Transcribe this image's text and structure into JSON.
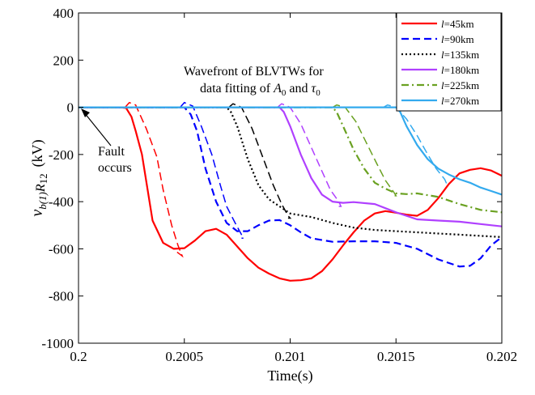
{
  "chart_data": {
    "type": "line",
    "xlabel": "Time(s)",
    "ylabel": {
      "main": "v",
      "sub_b": "b(1)",
      "mid": "R",
      "sub_12": "12",
      "unit": "(kV)"
    },
    "xlim": [
      0.2,
      0.202
    ],
    "ylim": [
      -1000,
      400
    ],
    "xticks": [
      0.2,
      0.2005,
      0.201,
      0.2015,
      0.202
    ],
    "xtick_labels": [
      "0.2",
      "0.2005",
      "0.201",
      "0.2015",
      "0.202"
    ],
    "yticks": [
      -1000,
      -800,
      -600,
      -400,
      -200,
      0,
      200,
      400
    ],
    "ytick_labels": [
      "-1000",
      "-800",
      "-600",
      "-400",
      "-200",
      "0",
      "200",
      "400"
    ],
    "grid": false,
    "legend_position": "top-right",
    "annotations": {
      "fault": [
        "Fault",
        "occurs"
      ],
      "wavefront_line1": "Wavefront of BLVTWs for",
      "wavefront_line2_prefix": "data fitting of ",
      "A_symbol": "A",
      "A_sub": "0",
      "and_text": " and ",
      "tau_symbol": "τ",
      "tau_sub": "0"
    },
    "series": [
      {
        "name": "l=45km",
        "name_var": "l",
        "name_rest": "=45km",
        "color": "#ff0000",
        "dash": "solid",
        "x": [
          0.2,
          0.2002,
          0.200225,
          0.20025,
          0.20027,
          0.2003,
          0.20035,
          0.2004,
          0.20045,
          0.2005,
          0.20055,
          0.2006,
          0.20065,
          0.2007,
          0.20075,
          0.2008,
          0.20085,
          0.2009,
          0.20095,
          0.201,
          0.20105,
          0.2011,
          0.20115,
          0.2012,
          0.20125,
          0.2013,
          0.20135,
          0.2014,
          0.20145,
          0.2015,
          0.20155,
          0.2016,
          0.20165,
          0.2017,
          0.20175,
          0.2018,
          0.20185,
          0.2019,
          0.20195,
          0.202
        ],
        "y": [
          0,
          0,
          -3,
          -40,
          -100,
          -200,
          -480,
          -575,
          -600,
          -597,
          -565,
          -525,
          -515,
          -540,
          -590,
          -640,
          -680,
          -705,
          -725,
          -735,
          -733,
          -725,
          -695,
          -645,
          -585,
          -530,
          -480,
          -450,
          -440,
          -447,
          -455,
          -460,
          -435,
          -385,
          -325,
          -280,
          -265,
          -258,
          -268,
          -290
        ]
      },
      {
        "name": "l=90km",
        "name_var": "l",
        "name_rest": "=90km",
        "color": "#0000ff",
        "dash": "dashed",
        "x": [
          0.2,
          0.2005,
          0.20053,
          0.20056,
          0.2006,
          0.20065,
          0.2007,
          0.20075,
          0.2008,
          0.20085,
          0.2009,
          0.20095,
          0.201,
          0.20105,
          0.2011,
          0.2012,
          0.2013,
          0.2014,
          0.2015,
          0.2016,
          0.2017,
          0.2018,
          0.20185,
          0.2019,
          0.20195,
          0.202
        ],
        "y": [
          0,
          0,
          -30,
          -100,
          -260,
          -400,
          -490,
          -525,
          -525,
          -500,
          -480,
          -478,
          -500,
          -530,
          -555,
          -570,
          -568,
          -568,
          -575,
          -600,
          -645,
          -675,
          -672,
          -640,
          -585,
          -550
        ]
      },
      {
        "name": "l=135km",
        "name_var": "l",
        "name_rest": "=135km",
        "color": "#000000",
        "dash": "dotted",
        "x": [
          0.2,
          0.2007,
          0.20072,
          0.20075,
          0.2008,
          0.20085,
          0.2009,
          0.20095,
          0.201,
          0.20105,
          0.2011,
          0.2012,
          0.2013,
          0.2014,
          0.2015,
          0.2016,
          0.2017,
          0.2018,
          0.2019,
          0.202
        ],
        "y": [
          0,
          0,
          -20,
          -80,
          -220,
          -330,
          -390,
          -420,
          -450,
          -458,
          -465,
          -490,
          -510,
          -520,
          -525,
          -530,
          -535,
          -540,
          -545,
          -550
        ]
      },
      {
        "name": "l=180km",
        "name_var": "l",
        "name_rest": "=180km",
        "color": "#b040ff",
        "dash": "solid",
        "x": [
          0.2,
          0.20095,
          0.20097,
          0.201,
          0.20105,
          0.2011,
          0.20115,
          0.2012,
          0.20125,
          0.2013,
          0.2014,
          0.2015,
          0.2016,
          0.2017,
          0.2018,
          0.2019,
          0.202
        ],
        "y": [
          0,
          0,
          -20,
          -80,
          -200,
          -300,
          -370,
          -400,
          -405,
          -402,
          -410,
          -445,
          -475,
          -480,
          -485,
          -495,
          -505
        ]
      },
      {
        "name": "l=225km",
        "name_var": "l",
        "name_rest": "=225km",
        "color": "#6aa121",
        "dash": "dashdot",
        "x": [
          0.2,
          0.2012,
          0.20122,
          0.20125,
          0.2013,
          0.20135,
          0.2014,
          0.20145,
          0.2015,
          0.20155,
          0.2016,
          0.2017,
          0.2018,
          0.2019,
          0.202
        ],
        "y": [
          0,
          0,
          -20,
          -80,
          -180,
          -260,
          -320,
          -345,
          -365,
          -368,
          -365,
          -380,
          -410,
          -435,
          -445
        ]
      },
      {
        "name": "l=270km",
        "name_var": "l",
        "name_rest": "=270km",
        "color": "#33aaee",
        "dash": "solid",
        "x": [
          0.2,
          0.2015,
          0.20152,
          0.20155,
          0.2016,
          0.20165,
          0.2017,
          0.20175,
          0.2018,
          0.20185,
          0.2019,
          0.20195,
          0.202
        ],
        "y": [
          0,
          0,
          -20,
          -80,
          -160,
          -220,
          -260,
          -285,
          -305,
          -320,
          -340,
          -355,
          -370
        ]
      }
    ],
    "wavefront_fits": [
      {
        "color": "#ff0000",
        "x": [
          0.20022,
          0.20024,
          0.20027,
          0.20032,
          0.20037,
          0.2004,
          0.20044,
          0.20047,
          0.20049,
          0.200475,
          0.20046
        ],
        "y": [
          0,
          20,
          10,
          -90,
          -210,
          -350,
          -500,
          -585,
          -630,
          -620,
          -610
        ]
      },
      {
        "color": "#0000ff",
        "x": [
          0.20048,
          0.2005,
          0.20054,
          0.20058,
          0.20063,
          0.20067,
          0.2007,
          0.20074,
          0.20077,
          0.20078,
          0.20077
        ],
        "y": [
          0,
          20,
          5,
          -80,
          -200,
          -330,
          -420,
          -490,
          -540,
          -555,
          -555
        ]
      },
      {
        "color": "#000000",
        "x": [
          0.20071,
          0.20073,
          0.20077,
          0.20082,
          0.20087,
          0.20092,
          0.20096,
          0.20099,
          0.201,
          0.20099
        ],
        "y": [
          0,
          15,
          0,
          -90,
          -210,
          -330,
          -410,
          -460,
          -470,
          -470
        ]
      },
      {
        "color": "#b040ff",
        "x": [
          0.20094,
          0.20096,
          0.201,
          0.20105,
          0.2011,
          0.20115,
          0.20119,
          0.20123,
          0.20124,
          0.20123
        ],
        "y": [
          0,
          15,
          0,
          -70,
          -170,
          -270,
          -350,
          -400,
          -420,
          -420
        ]
      },
      {
        "color": "#6aa121",
        "x": [
          0.2012,
          0.20122,
          0.20126,
          0.20131,
          0.20136,
          0.20141,
          0.20145,
          0.20149,
          0.2015,
          0.20149
        ],
        "y": [
          0,
          10,
          0,
          -60,
          -150,
          -240,
          -310,
          -360,
          -375,
          -375
        ]
      },
      {
        "color": "#33aaee",
        "x": [
          0.20144,
          0.20146,
          0.2015,
          0.20155,
          0.2016,
          0.20165,
          0.20169,
          0.20173,
          0.20174,
          0.20173
        ],
        "y": [
          0,
          10,
          0,
          -50,
          -120,
          -200,
          -260,
          -305,
          -325,
          -325
        ]
      }
    ]
  }
}
